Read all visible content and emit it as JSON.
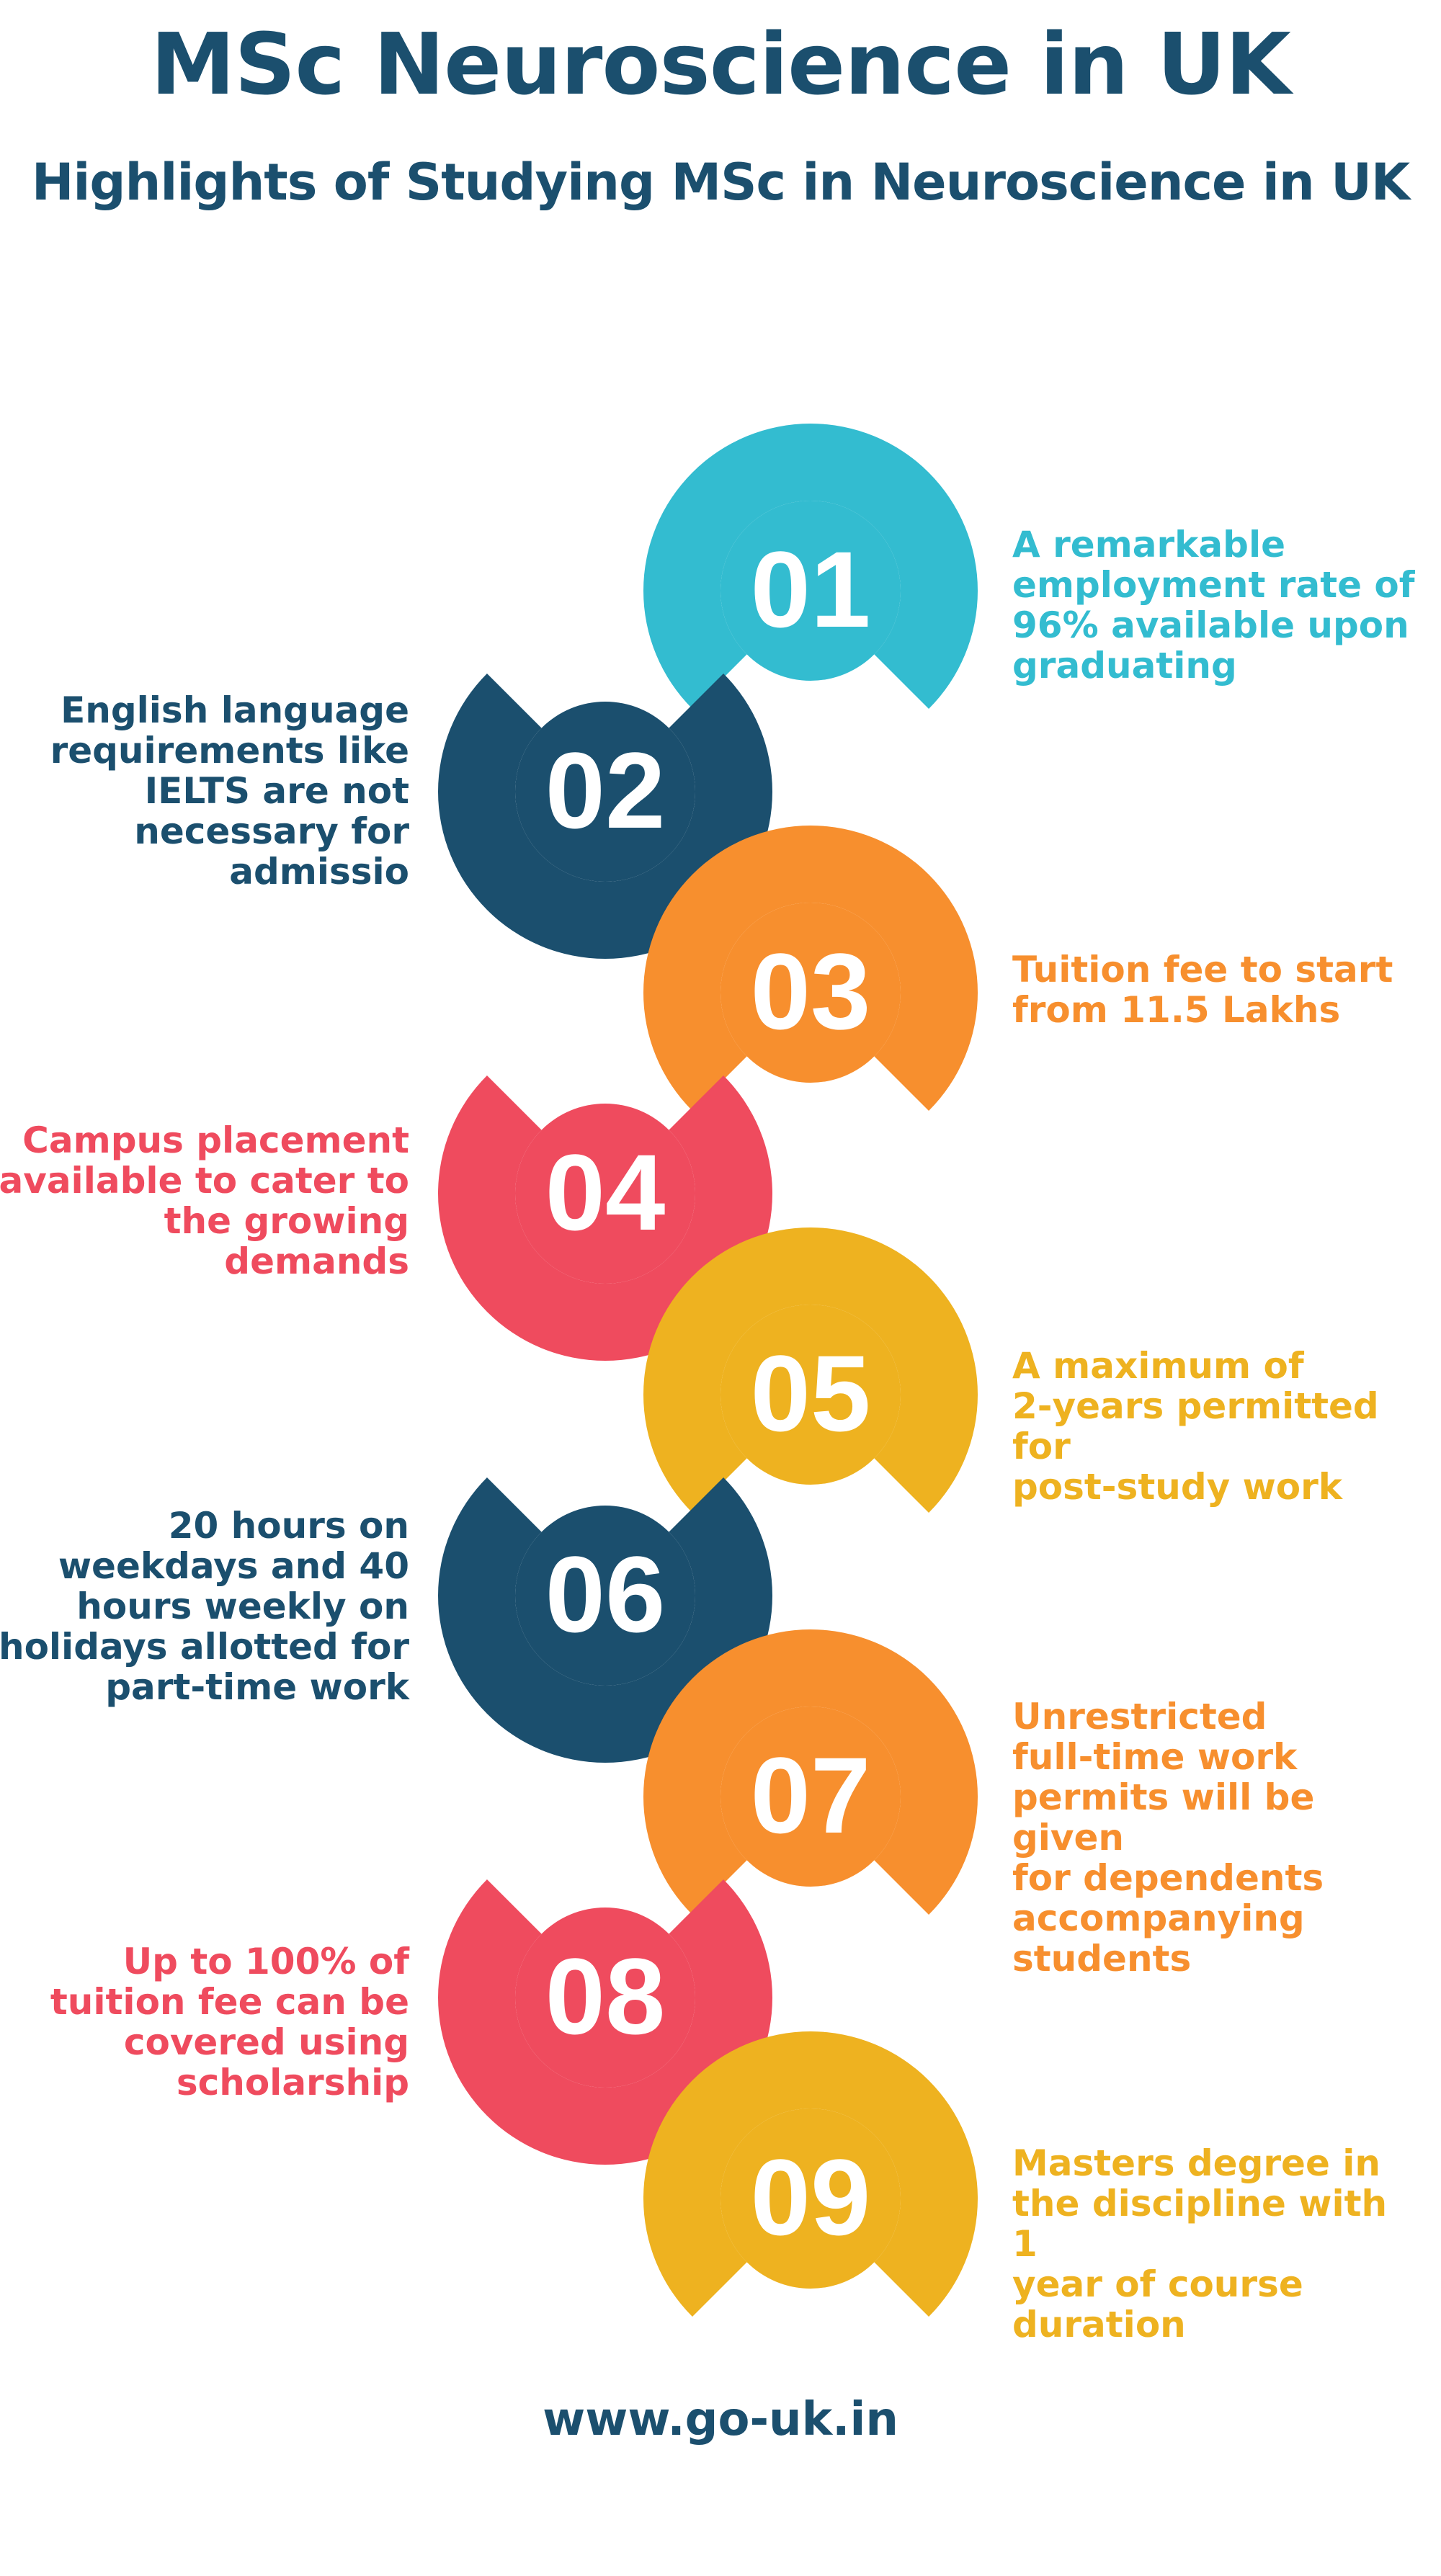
{
  "header": {
    "title": "MSc Neuroscience in UK",
    "subtitle": "Highlights of Studying MSc in Neuroscience in UK"
  },
  "colors": {
    "navy": "#1b4f6e",
    "cyan": "#33bcd0",
    "orange": "#f78f2e",
    "red": "#ef4b5e",
    "yellow": "#eeb220"
  },
  "steps": [
    {
      "number": "01",
      "color": "#33bcd0",
      "text": "A remarkable\nemployment rate of\n96% available upon\ngraduating"
    },
    {
      "number": "02",
      "color": "#1b4f6e",
      "text": "English language\nrequirements like\nIELTS are not\nnecessary for\nadmissio"
    },
    {
      "number": "03",
      "color": "#f78f2e",
      "text": "Tuition fee to start\nfrom 11.5 Lakhs"
    },
    {
      "number": "04",
      "color": "#ef4b5e",
      "text": "Campus placement\navailable to cater to\nthe growing\ndemands"
    },
    {
      "number": "05",
      "color": "#eeb220",
      "text": "A maximum of\n2-years permitted for\npost-study work"
    },
    {
      "number": "06",
      "color": "#1b4f6e",
      "text": "20 hours on\nweekdays and 40\nhours weekly on\nholidays allotted for\npart-time work"
    },
    {
      "number": "07",
      "color": "#f78f2e",
      "text": "Unrestricted\nfull-time work\npermits will be given\nfor dependents\naccompanying\nstudents"
    },
    {
      "number": "08",
      "color": "#ef4b5e",
      "text": "Up to 100% of\ntuition fee can be\ncovered using\nscholarship"
    },
    {
      "number": "09",
      "color": "#eeb220",
      "text": "Masters degree in\nthe discipline with 1\nyear of course\nduration"
    }
  ],
  "footer": {
    "website": "www.go-uk.in"
  }
}
